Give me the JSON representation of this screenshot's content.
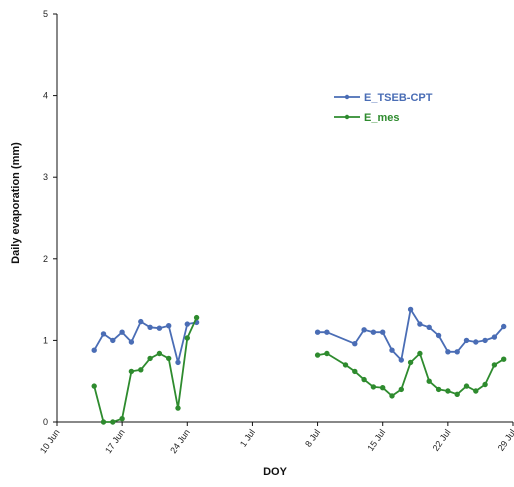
{
  "chart_data": {
    "type": "line",
    "xlabel": "DOY",
    "ylabel": "Daily evaporation (mm)",
    "ylim": [
      0,
      5
    ],
    "yticks": [
      0,
      1,
      2,
      3,
      4,
      5
    ],
    "xlim": [
      "2012-06-10",
      "2012-07-29"
    ],
    "xticks": [
      {
        "label": "10 Jun",
        "date": "2012-06-10"
      },
      {
        "label": "17 Jun",
        "date": "2012-06-17"
      },
      {
        "label": "24 Jun",
        "date": "2012-06-24"
      },
      {
        "label": "1 Jul",
        "date": "2012-07-01"
      },
      {
        "label": "8 Jul",
        "date": "2012-07-08"
      },
      {
        "label": "15 Jul",
        "date": "2012-07-15"
      },
      {
        "label": "22 Jul",
        "date": "2012-07-22"
      },
      {
        "label": "29 Jul",
        "date": "2012-07-29"
      }
    ],
    "grid": false,
    "legend_position": "top-right",
    "series": [
      {
        "name": "E_TSEB-CPT",
        "color": "#4a6db5",
        "points": [
          [
            "2012-06-14",
            0.88
          ],
          [
            "2012-06-15",
            1.08
          ],
          [
            "2012-06-16",
            1.0
          ],
          [
            "2012-06-17",
            1.1
          ],
          [
            "2012-06-18",
            0.98
          ],
          [
            "2012-06-19",
            1.23
          ],
          [
            "2012-06-20",
            1.16
          ],
          [
            "2012-06-21",
            1.15
          ],
          [
            "2012-06-22",
            1.18
          ],
          [
            "2012-06-23",
            0.73
          ],
          [
            "2012-06-24",
            1.2
          ],
          [
            "2012-06-25",
            1.22
          ],
          null,
          [
            "2012-07-08",
            1.1
          ],
          [
            "2012-07-09",
            1.1
          ],
          [
            "2012-07-12",
            0.96
          ],
          [
            "2012-07-13",
            1.13
          ],
          [
            "2012-07-14",
            1.1
          ],
          [
            "2012-07-15",
            1.1
          ],
          [
            "2012-07-16",
            0.88
          ],
          [
            "2012-07-17",
            0.76
          ],
          [
            "2012-07-18",
            1.38
          ],
          [
            "2012-07-19",
            1.2
          ],
          [
            "2012-07-20",
            1.16
          ],
          [
            "2012-07-21",
            1.06
          ],
          [
            "2012-07-22",
            0.86
          ],
          [
            "2012-07-23",
            0.86
          ],
          [
            "2012-07-24",
            1.0
          ],
          [
            "2012-07-25",
            0.98
          ],
          [
            "2012-07-26",
            1.0
          ],
          [
            "2012-07-27",
            1.04
          ],
          [
            "2012-07-28",
            1.17
          ]
        ]
      },
      {
        "name": "E_mes",
        "color": "#2e8b2e",
        "points": [
          [
            "2012-06-14",
            0.44
          ],
          [
            "2012-06-15",
            0.0
          ],
          [
            "2012-06-16",
            0.0
          ],
          [
            "2012-06-17",
            0.04
          ],
          [
            "2012-06-18",
            0.62
          ],
          [
            "2012-06-19",
            0.64
          ],
          [
            "2012-06-20",
            0.78
          ],
          [
            "2012-06-21",
            0.84
          ],
          [
            "2012-06-22",
            0.78
          ],
          [
            "2012-06-23",
            0.17
          ],
          [
            "2012-06-24",
            1.03
          ],
          [
            "2012-06-25",
            1.28
          ],
          null,
          [
            "2012-07-08",
            0.82
          ],
          [
            "2012-07-09",
            0.84
          ],
          [
            "2012-07-11",
            0.7
          ],
          [
            "2012-07-12",
            0.62
          ],
          [
            "2012-07-13",
            0.52
          ],
          [
            "2012-07-14",
            0.43
          ],
          [
            "2012-07-15",
            0.42
          ],
          [
            "2012-07-16",
            0.32
          ],
          [
            "2012-07-17",
            0.4
          ],
          [
            "2012-07-18",
            0.73
          ],
          [
            "2012-07-19",
            0.84
          ],
          [
            "2012-07-20",
            0.5
          ],
          [
            "2012-07-21",
            0.4
          ],
          [
            "2012-07-22",
            0.38
          ],
          [
            "2012-07-23",
            0.34
          ],
          [
            "2012-07-24",
            0.44
          ],
          [
            "2012-07-25",
            0.38
          ],
          [
            "2012-07-26",
            0.46
          ],
          [
            "2012-07-27",
            0.7
          ],
          [
            "2012-07-28",
            0.77
          ]
        ]
      }
    ]
  }
}
